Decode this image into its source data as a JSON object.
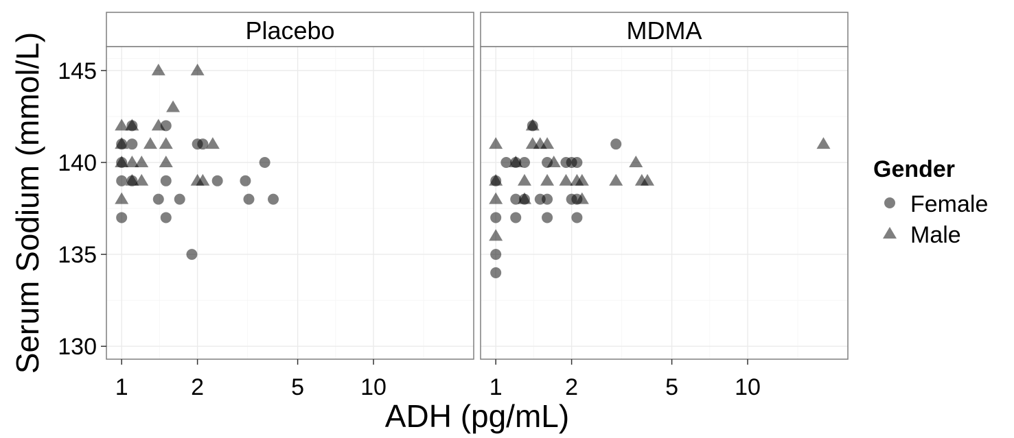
{
  "chart_data": {
    "type": "scatter",
    "xlabel": "ADH (pg/mL)",
    "ylabel": "Serum Sodium (mmol/L)",
    "x_scale": "log10",
    "xlim": [
      0.87,
      25
    ],
    "ylim": [
      129.3,
      146.3
    ],
    "x_ticks": [
      1,
      2,
      5,
      10
    ],
    "x_tick_labels": [
      "1",
      "2",
      "5",
      "10"
    ],
    "y_ticks": [
      130,
      135,
      140,
      145
    ],
    "y_tick_labels": [
      "130",
      "135",
      "140",
      "145"
    ],
    "grid": true,
    "legend": {
      "title": "Gender",
      "position": "right",
      "entries": [
        {
          "label": "Female",
          "shape": "circle"
        },
        {
          "label": "Male",
          "shape": "triangle"
        }
      ]
    },
    "point_color": "#000000",
    "point_alpha": 0.5,
    "panels": [
      {
        "label": "Placebo",
        "series": [
          {
            "name": "Female",
            "points": [
              [
                1.0,
                137
              ],
              [
                1.0,
                139
              ],
              [
                1.0,
                140
              ],
              [
                1.0,
                141
              ],
              [
                1.1,
                141
              ],
              [
                1.1,
                139
              ],
              [
                1.1,
                142
              ],
              [
                1.4,
                138
              ],
              [
                1.5,
                142
              ],
              [
                1.5,
                139
              ],
              [
                1.5,
                137
              ],
              [
                1.7,
                138
              ],
              [
                1.9,
                135
              ],
              [
                2.0,
                141
              ],
              [
                2.1,
                141
              ],
              [
                2.4,
                139
              ],
              [
                3.1,
                139
              ],
              [
                3.2,
                138
              ],
              [
                3.7,
                140
              ],
              [
                4.0,
                138
              ]
            ]
          },
          {
            "name": "Male",
            "points": [
              [
                1.0,
                138
              ],
              [
                1.0,
                140
              ],
              [
                1.0,
                141
              ],
              [
                1.0,
                142
              ],
              [
                1.1,
                140
              ],
              [
                1.1,
                142
              ],
              [
                1.1,
                139
              ],
              [
                1.2,
                140
              ],
              [
                1.2,
                139
              ],
              [
                1.3,
                141
              ],
              [
                1.4,
                142
              ],
              [
                1.4,
                145
              ],
              [
                1.5,
                141
              ],
              [
                1.5,
                140
              ],
              [
                1.6,
                143
              ],
              [
                2.0,
                145
              ],
              [
                2.0,
                139
              ],
              [
                2.1,
                139
              ],
              [
                2.3,
                141
              ]
            ]
          }
        ]
      },
      {
        "label": "MDMA",
        "series": [
          {
            "name": "Female",
            "points": [
              [
                1.0,
                139
              ],
              [
                1.0,
                137
              ],
              [
                1.0,
                135
              ],
              [
                1.0,
                134
              ],
              [
                1.1,
                140
              ],
              [
                1.2,
                140
              ],
              [
                1.2,
                138
              ],
              [
                1.2,
                137
              ],
              [
                1.3,
                138
              ],
              [
                1.3,
                140
              ],
              [
                1.4,
                142
              ],
              [
                1.5,
                138
              ],
              [
                1.6,
                140
              ],
              [
                1.6,
                138
              ],
              [
                1.6,
                137
              ],
              [
                1.9,
                140
              ],
              [
                2.0,
                140
              ],
              [
                2.0,
                138
              ],
              [
                2.1,
                140
              ],
              [
                2.1,
                138
              ],
              [
                2.1,
                137
              ],
              [
                3.0,
                141
              ]
            ]
          },
          {
            "name": "Male",
            "points": [
              [
                1.0,
                141
              ],
              [
                1.0,
                139
              ],
              [
                1.0,
                138
              ],
              [
                1.0,
                136
              ],
              [
                1.2,
                140
              ],
              [
                1.3,
                139
              ],
              [
                1.3,
                138
              ],
              [
                1.4,
                141
              ],
              [
                1.4,
                142
              ],
              [
                1.5,
                141
              ],
              [
                1.6,
                141
              ],
              [
                1.6,
                139
              ],
              [
                1.7,
                140
              ],
              [
                1.9,
                139
              ],
              [
                2.1,
                139
              ],
              [
                2.2,
                139
              ],
              [
                2.2,
                138
              ],
              [
                3.0,
                139
              ],
              [
                3.6,
                140
              ],
              [
                3.8,
                139
              ],
              [
                4.0,
                139
              ],
              [
                20,
                141
              ]
            ]
          }
        ]
      }
    ]
  }
}
